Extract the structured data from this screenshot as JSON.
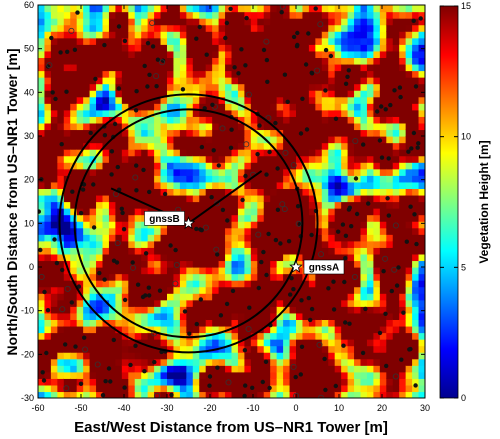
{
  "figure": {
    "xlabel": "East/West Distance from US–NR1 Tower [m]",
    "ylabel": "North/South Distance from US–NR1 Tower [m]",
    "colorbar_label": "Vegetation Height  [m]",
    "colorbar_ticks": [
      "0",
      "5",
      "10",
      "15"
    ],
    "colormap": [
      "#00008f",
      "#0000ff",
      "#0080ff",
      "#00ffff",
      "#80ff80",
      "#ffff00",
      "#ff8000",
      "#ff0000",
      "#800000"
    ]
  },
  "chart_data": {
    "type": "heatmap",
    "title": "",
    "xlabel": "East/West Distance from US–NR1 Tower [m]",
    "ylabel": "North/South Distance from US–NR1 Tower [m]",
    "xlim": [
      -60,
      30
    ],
    "ylim": [
      -30,
      60
    ],
    "xticks": [
      -60,
      -50,
      -40,
      -30,
      -20,
      -10,
      0,
      10,
      20,
      30
    ],
    "yticks": [
      -30,
      -20,
      -10,
      0,
      10,
      20,
      30,
      40,
      50,
      60
    ],
    "color_range": [
      0,
      15
    ],
    "colorbar_label": "Vegetation Height  [m]",
    "grid": false,
    "annotations": [
      {
        "label": "gnssB",
        "x": -25,
        "y": 10
      },
      {
        "label": "gnssA",
        "x": 0,
        "y": 0
      }
    ],
    "footprints": [
      {
        "center": [
          -25,
          10
        ],
        "radius": 26.5
      },
      {
        "center": [
          -25,
          10
        ],
        "radius": 30
      }
    ],
    "sector_lines": [
      {
        "from": [
          -25,
          10
        ],
        "to": [
          -43,
          18
        ]
      },
      {
        "from": [
          -25,
          10
        ],
        "to": [
          -8,
          22
        ]
      }
    ]
  }
}
